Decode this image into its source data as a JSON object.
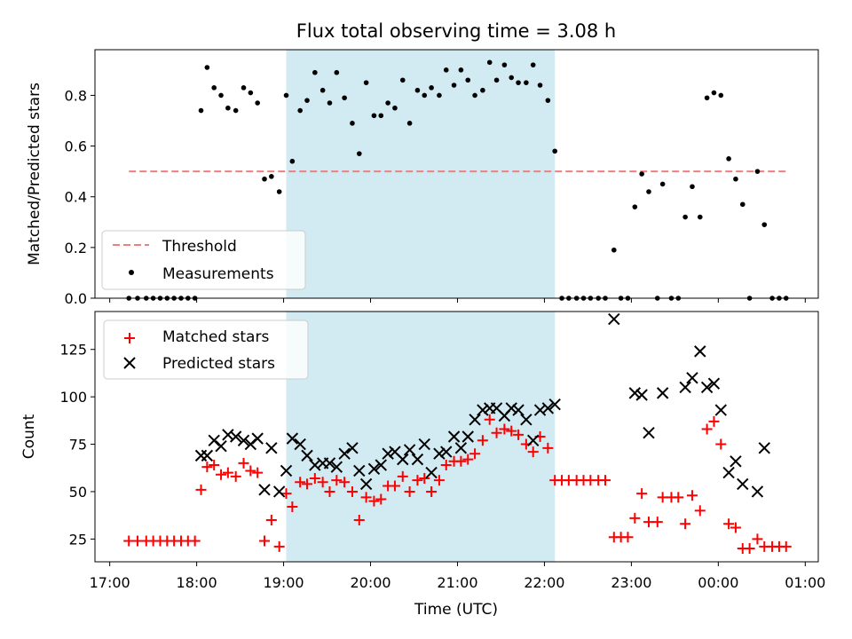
{
  "title": "Flux total observing time = 3.08 h",
  "colors": {
    "threshold": "#f08080",
    "band": "#add8e6",
    "matched": "#ff0000",
    "predicted": "#000000",
    "measurements": "#000000"
  },
  "x_axis": {
    "label": "Time (UTC)",
    "ticks": [
      {
        "h": 17,
        "label": "17:00"
      },
      {
        "h": 18,
        "label": "18:00"
      },
      {
        "h": 19,
        "label": "19:00"
      },
      {
        "h": 20,
        "label": "20:00"
      },
      {
        "h": 21,
        "label": "21:00"
      },
      {
        "h": 22,
        "label": "22:00"
      },
      {
        "h": 23,
        "label": "23:00"
      },
      {
        "h": 24,
        "label": "00:00"
      },
      {
        "h": 25,
        "label": "01:00"
      }
    ]
  },
  "chart_data": [
    {
      "type": "scatter",
      "ylabel": "Matched/Predicted stars",
      "ylim": [
        0,
        0.98
      ],
      "yticks": [
        0.0,
        0.2,
        0.4,
        0.6,
        0.8
      ],
      "ytick_labels": [
        "0.0",
        "0.2",
        "0.4",
        "0.6",
        "0.8"
      ],
      "legend": {
        "placement": "lower-left",
        "entries": [
          "Threshold",
          "Measurements"
        ]
      },
      "shaded_region": {
        "x": [
          19.03,
          22.12
        ]
      },
      "threshold": {
        "name": "Threshold",
        "value": 0.5,
        "x": [
          17.22,
          24.78
        ]
      },
      "series": [
        {
          "name": "Measurements",
          "points": [
            [
              17.22,
              0
            ],
            [
              17.32,
              0
            ],
            [
              17.42,
              0
            ],
            [
              17.5,
              0
            ],
            [
              17.58,
              0
            ],
            [
              17.66,
              0
            ],
            [
              17.74,
              0
            ],
            [
              17.82,
              0
            ],
            [
              17.9,
              0
            ],
            [
              17.98,
              0
            ],
            [
              18.05,
              0.74
            ],
            [
              18.12,
              0.91
            ],
            [
              18.2,
              0.83
            ],
            [
              18.28,
              0.8
            ],
            [
              18.36,
              0.75
            ],
            [
              18.45,
              0.74
            ],
            [
              18.54,
              0.83
            ],
            [
              18.62,
              0.81
            ],
            [
              18.7,
              0.77
            ],
            [
              18.78,
              0.47
            ],
            [
              18.86,
              0.48
            ],
            [
              18.95,
              0.42
            ],
            [
              19.03,
              0.8
            ],
            [
              19.1,
              0.54
            ],
            [
              19.19,
              0.74
            ],
            [
              19.27,
              0.78
            ],
            [
              19.36,
              0.89
            ],
            [
              19.45,
              0.82
            ],
            [
              19.53,
              0.77
            ],
            [
              19.61,
              0.89
            ],
            [
              19.7,
              0.79
            ],
            [
              19.79,
              0.69
            ],
            [
              19.87,
              0.57
            ],
            [
              19.95,
              0.85
            ],
            [
              20.04,
              0.72
            ],
            [
              20.12,
              0.72
            ],
            [
              20.2,
              0.77
            ],
            [
              20.28,
              0.75
            ],
            [
              20.37,
              0.86
            ],
            [
              20.45,
              0.69
            ],
            [
              20.54,
              0.82
            ],
            [
              20.62,
              0.8
            ],
            [
              20.7,
              0.83
            ],
            [
              20.79,
              0.8
            ],
            [
              20.87,
              0.9
            ],
            [
              20.96,
              0.84
            ],
            [
              21.04,
              0.9
            ],
            [
              21.12,
              0.86
            ],
            [
              21.2,
              0.8
            ],
            [
              21.29,
              0.82
            ],
            [
              21.37,
              0.93
            ],
            [
              21.45,
              0.86
            ],
            [
              21.54,
              0.92
            ],
            [
              21.62,
              0.87
            ],
            [
              21.7,
              0.85
            ],
            [
              21.79,
              0.85
            ],
            [
              21.87,
              0.92
            ],
            [
              21.95,
              0.84
            ],
            [
              22.04,
              0.78
            ],
            [
              22.12,
              0.58
            ],
            [
              22.2,
              0
            ],
            [
              22.28,
              0
            ],
            [
              22.37,
              0
            ],
            [
              22.45,
              0
            ],
            [
              22.53,
              0
            ],
            [
              22.62,
              0
            ],
            [
              22.7,
              0
            ],
            [
              22.8,
              0.19
            ],
            [
              22.88,
              0
            ],
            [
              22.96,
              0
            ],
            [
              23.04,
              0.36
            ],
            [
              23.12,
              0.49
            ],
            [
              23.2,
              0.42
            ],
            [
              23.3,
              0
            ],
            [
              23.36,
              0.45
            ],
            [
              23.46,
              0
            ],
            [
              23.54,
              0
            ],
            [
              23.62,
              0.32
            ],
            [
              23.7,
              0.44
            ],
            [
              23.79,
              0.32
            ],
            [
              23.87,
              0.79
            ],
            [
              23.95,
              0.81
            ],
            [
              24.03,
              0.8
            ],
            [
              24.12,
              0.55
            ],
            [
              24.2,
              0.47
            ],
            [
              24.28,
              0.37
            ],
            [
              24.36,
              0
            ],
            [
              24.45,
              0.5
            ],
            [
              24.53,
              0.29
            ],
            [
              24.62,
              0
            ],
            [
              24.7,
              0
            ],
            [
              24.78,
              0
            ]
          ]
        }
      ]
    },
    {
      "type": "scatter",
      "ylabel": "Count",
      "ylim": [
        13,
        145
      ],
      "yticks": [
        25,
        50,
        75,
        100,
        125
      ],
      "ytick_labels": [
        "25",
        "50",
        "75",
        "100",
        "125"
      ],
      "legend": {
        "placement": "upper-left",
        "entries": [
          "Matched stars",
          "Predicted stars"
        ]
      },
      "shaded_region": {
        "x": [
          19.03,
          22.12
        ]
      },
      "series": [
        {
          "name": "Matched stars",
          "points": [
            [
              17.22,
              24
            ],
            [
              17.32,
              24
            ],
            [
              17.42,
              24
            ],
            [
              17.5,
              24
            ],
            [
              17.58,
              24
            ],
            [
              17.66,
              24
            ],
            [
              17.74,
              24
            ],
            [
              17.82,
              24
            ],
            [
              17.9,
              24
            ],
            [
              17.98,
              24
            ],
            [
              18.05,
              51
            ],
            [
              18.12,
              63
            ],
            [
              18.2,
              64
            ],
            [
              18.28,
              59
            ],
            [
              18.36,
              60
            ],
            [
              18.45,
              58
            ],
            [
              18.54,
              65
            ],
            [
              18.62,
              61
            ],
            [
              18.7,
              60
            ],
            [
              18.78,
              24
            ],
            [
              18.86,
              35
            ],
            [
              18.95,
              21
            ],
            [
              19.03,
              49
            ],
            [
              19.1,
              42
            ],
            [
              19.19,
              55
            ],
            [
              19.27,
              54
            ],
            [
              19.36,
              57
            ],
            [
              19.45,
              55
            ],
            [
              19.53,
              50
            ],
            [
              19.61,
              56
            ],
            [
              19.7,
              55
            ],
            [
              19.79,
              50
            ],
            [
              19.87,
              35
            ],
            [
              19.95,
              47
            ],
            [
              20.04,
              45
            ],
            [
              20.12,
              46
            ],
            [
              20.2,
              53
            ],
            [
              20.28,
              53
            ],
            [
              20.37,
              58
            ],
            [
              20.45,
              50
            ],
            [
              20.54,
              56
            ],
            [
              20.62,
              57
            ],
            [
              20.7,
              50
            ],
            [
              20.79,
              56
            ],
            [
              20.87,
              64
            ],
            [
              20.96,
              66
            ],
            [
              21.04,
              66
            ],
            [
              21.12,
              67
            ],
            [
              21.2,
              70
            ],
            [
              21.29,
              77
            ],
            [
              21.37,
              88
            ],
            [
              21.45,
              81
            ],
            [
              21.54,
              83
            ],
            [
              21.62,
              82
            ],
            [
              21.7,
              80
            ],
            [
              21.79,
              75
            ],
            [
              21.87,
              71
            ],
            [
              21.95,
              79
            ],
            [
              22.04,
              73
            ],
            [
              22.12,
              56
            ],
            [
              22.2,
              56
            ],
            [
              22.28,
              56
            ],
            [
              22.37,
              56
            ],
            [
              22.45,
              56
            ],
            [
              22.53,
              56
            ],
            [
              22.62,
              56
            ],
            [
              22.7,
              56
            ],
            [
              22.8,
              26
            ],
            [
              22.88,
              26
            ],
            [
              22.96,
              26
            ],
            [
              23.04,
              36
            ],
            [
              23.12,
              49
            ],
            [
              23.2,
              34
            ],
            [
              23.3,
              34
            ],
            [
              23.36,
              47
            ],
            [
              23.46,
              47
            ],
            [
              23.54,
              47
            ],
            [
              23.62,
              33
            ],
            [
              23.7,
              48
            ],
            [
              23.79,
              40
            ],
            [
              23.87,
              83
            ],
            [
              23.95,
              87
            ],
            [
              24.03,
              75
            ],
            [
              24.12,
              33
            ],
            [
              24.2,
              31
            ],
            [
              24.28,
              20
            ],
            [
              24.36,
              20
            ],
            [
              24.45,
              25
            ],
            [
              24.53,
              21
            ],
            [
              24.62,
              21
            ],
            [
              24.7,
              21
            ],
            [
              24.78,
              21
            ]
          ]
        },
        {
          "name": "Predicted stars",
          "points": [
            [
              18.05,
              69
            ],
            [
              18.12,
              69
            ],
            [
              18.2,
              77
            ],
            [
              18.28,
              74
            ],
            [
              18.36,
              80
            ],
            [
              18.45,
              79
            ],
            [
              18.54,
              77
            ],
            [
              18.62,
              75
            ],
            [
              18.7,
              78
            ],
            [
              18.78,
              51
            ],
            [
              18.86,
              73
            ],
            [
              18.95,
              50
            ],
            [
              19.03,
              61
            ],
            [
              19.1,
              78
            ],
            [
              19.19,
              75
            ],
            [
              19.27,
              69
            ],
            [
              19.36,
              64
            ],
            [
              19.45,
              65
            ],
            [
              19.53,
              65
            ],
            [
              19.61,
              63
            ],
            [
              19.7,
              70
            ],
            [
              19.79,
              73
            ],
            [
              19.87,
              61
            ],
            [
              19.95,
              54
            ],
            [
              20.04,
              62
            ],
            [
              20.12,
              64
            ],
            [
              20.2,
              70
            ],
            [
              20.28,
              71
            ],
            [
              20.37,
              67
            ],
            [
              20.45,
              72
            ],
            [
              20.54,
              67
            ],
            [
              20.62,
              75
            ],
            [
              20.7,
              60
            ],
            [
              20.79,
              70
            ],
            [
              20.87,
              71
            ],
            [
              20.96,
              79
            ],
            [
              21.04,
              73
            ],
            [
              21.12,
              79
            ],
            [
              21.2,
              88
            ],
            [
              21.29,
              93
            ],
            [
              21.37,
              94
            ],
            [
              21.45,
              94
            ],
            [
              21.54,
              90
            ],
            [
              21.62,
              94
            ],
            [
              21.7,
              93
            ],
            [
              21.79,
              88
            ],
            [
              21.87,
              77
            ],
            [
              21.95,
              93
            ],
            [
              22.04,
              94
            ],
            [
              22.12,
              96
            ],
            [
              22.8,
              141
            ],
            [
              23.04,
              102
            ],
            [
              23.12,
              101
            ],
            [
              23.2,
              81
            ],
            [
              23.36,
              102
            ],
            [
              23.62,
              105
            ],
            [
              23.7,
              110
            ],
            [
              23.79,
              124
            ],
            [
              23.87,
              105
            ],
            [
              23.95,
              107
            ],
            [
              24.03,
              93
            ],
            [
              24.12,
              60
            ],
            [
              24.2,
              66
            ],
            [
              24.28,
              54
            ],
            [
              24.45,
              50
            ],
            [
              24.53,
              73
            ]
          ]
        }
      ]
    }
  ]
}
